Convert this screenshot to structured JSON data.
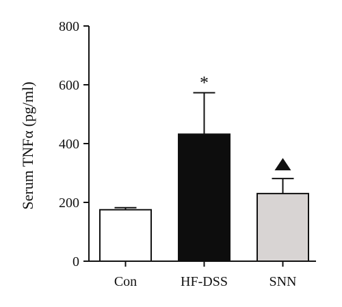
{
  "chart_data": {
    "type": "bar",
    "categories": [
      "Con",
      "HF-DSS",
      "SNN"
    ],
    "values": [
      175,
      432,
      230
    ],
    "error_upper": [
      182,
      573,
      281
    ],
    "bar_fills": [
      "#ffffff",
      "#0d0d0d",
      "#d8d4d3"
    ],
    "bar_stroke": "#111111",
    "annotations": [
      {
        "category": "HF-DSS",
        "symbol": "*",
        "kind": "text"
      },
      {
        "category": "SNN",
        "symbol": "▲",
        "kind": "triangle"
      }
    ],
    "ylabel": "Serum TNFα (pg/ml)",
    "ylim": [
      0,
      800
    ],
    "yticks": [
      0,
      200,
      400,
      600,
      800
    ],
    "grid": false
  }
}
